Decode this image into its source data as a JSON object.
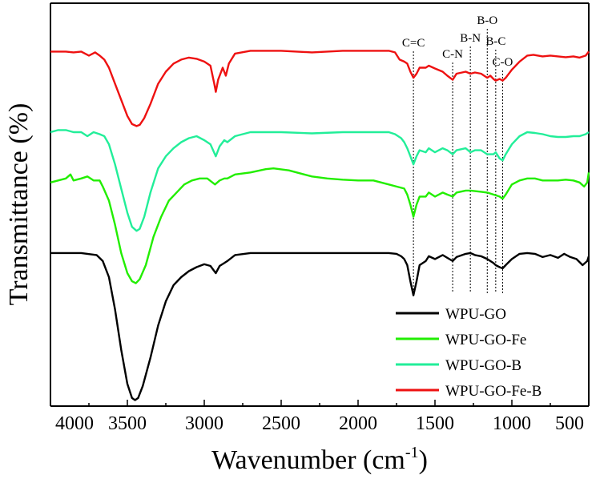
{
  "chart_data": {
    "type": "line",
    "title": "",
    "xlabel": "Wavenumber (cm",
    "xlabel_sup": "-1",
    "xlabel_close": ")",
    "ylabel": "Transmittance (%)",
    "xlim": [
      4000,
      500
    ],
    "ylim": [
      0,
      1
    ],
    "x_ticks": [
      "4000",
      "3500",
      "3000",
      "2500",
      "2000",
      "1500",
      "1000",
      "500"
    ],
    "legend": "bottom-right",
    "annotations": [
      {
        "label": "C=C",
        "x": 1640
      },
      {
        "label": "C-N",
        "x": 1385
      },
      {
        "label": "B-N",
        "x": 1270
      },
      {
        "label": "B-O",
        "x": 1160
      },
      {
        "label": "B-C",
        "x": 1105
      },
      {
        "label": "C-O",
        "x": 1060
      }
    ],
    "series": [
      {
        "name": "WPU-GO",
        "color": "#000000",
        "points": [
          [
            4000,
            0.38
          ],
          [
            3900,
            0.38
          ],
          [
            3800,
            0.38
          ],
          [
            3700,
            0.375
          ],
          [
            3660,
            0.36
          ],
          [
            3620,
            0.32
          ],
          [
            3580,
            0.24
          ],
          [
            3540,
            0.14
          ],
          [
            3500,
            0.055
          ],
          [
            3470,
            0.02
          ],
          [
            3450,
            0.015
          ],
          [
            3430,
            0.02
          ],
          [
            3400,
            0.05
          ],
          [
            3350,
            0.12
          ],
          [
            3300,
            0.2
          ],
          [
            3250,
            0.26
          ],
          [
            3200,
            0.3
          ],
          [
            3150,
            0.32
          ],
          [
            3100,
            0.335
          ],
          [
            3050,
            0.345
          ],
          [
            3000,
            0.352
          ],
          [
            2960,
            0.348
          ],
          [
            2925,
            0.33
          ],
          [
            2900,
            0.348
          ],
          [
            2870,
            0.355
          ],
          [
            2850,
            0.36
          ],
          [
            2800,
            0.375
          ],
          [
            2700,
            0.38
          ],
          [
            2500,
            0.38
          ],
          [
            2300,
            0.38
          ],
          [
            2000,
            0.38
          ],
          [
            1800,
            0.38
          ],
          [
            1750,
            0.378
          ],
          [
            1720,
            0.372
          ],
          [
            1700,
            0.365
          ],
          [
            1680,
            0.35
          ],
          [
            1660,
            0.31
          ],
          [
            1640,
            0.275
          ],
          [
            1620,
            0.31
          ],
          [
            1600,
            0.35
          ],
          [
            1560,
            0.36
          ],
          [
            1540,
            0.372
          ],
          [
            1500,
            0.365
          ],
          [
            1450,
            0.375
          ],
          [
            1420,
            0.368
          ],
          [
            1385,
            0.36
          ],
          [
            1360,
            0.37
          ],
          [
            1300,
            0.378
          ],
          [
            1270,
            0.38
          ],
          [
            1240,
            0.375
          ],
          [
            1200,
            0.372
          ],
          [
            1160,
            0.365
          ],
          [
            1120,
            0.355
          ],
          [
            1105,
            0.35
          ],
          [
            1080,
            0.345
          ],
          [
            1060,
            0.342
          ],
          [
            1040,
            0.35
          ],
          [
            1000,
            0.365
          ],
          [
            950,
            0.378
          ],
          [
            900,
            0.38
          ],
          [
            850,
            0.378
          ],
          [
            800,
            0.37
          ],
          [
            750,
            0.375
          ],
          [
            700,
            0.368
          ],
          [
            660,
            0.378
          ],
          [
            620,
            0.37
          ],
          [
            580,
            0.365
          ],
          [
            540,
            0.35
          ],
          [
            510,
            0.36
          ],
          [
            500,
            0.372
          ]
        ]
      },
      {
        "name": "WPU-GO-Fe",
        "color": "#22ee00",
        "points": [
          [
            4000,
            0.555
          ],
          [
            3950,
            0.56
          ],
          [
            3900,
            0.565
          ],
          [
            3870,
            0.575
          ],
          [
            3850,
            0.56
          ],
          [
            3800,
            0.565
          ],
          [
            3760,
            0.57
          ],
          [
            3720,
            0.56
          ],
          [
            3680,
            0.56
          ],
          [
            3660,
            0.545
          ],
          [
            3620,
            0.51
          ],
          [
            3580,
            0.45
          ],
          [
            3540,
            0.38
          ],
          [
            3500,
            0.33
          ],
          [
            3470,
            0.31
          ],
          [
            3445,
            0.305
          ],
          [
            3420,
            0.315
          ],
          [
            3380,
            0.35
          ],
          [
            3330,
            0.42
          ],
          [
            3280,
            0.47
          ],
          [
            3230,
            0.51
          ],
          [
            3180,
            0.53
          ],
          [
            3130,
            0.55
          ],
          [
            3080,
            0.56
          ],
          [
            3030,
            0.565
          ],
          [
            2980,
            0.565
          ],
          [
            2930,
            0.55
          ],
          [
            2900,
            0.56
          ],
          [
            2870,
            0.565
          ],
          [
            2850,
            0.565
          ],
          [
            2800,
            0.575
          ],
          [
            2700,
            0.58
          ],
          [
            2600,
            0.588
          ],
          [
            2550,
            0.59
          ],
          [
            2450,
            0.585
          ],
          [
            2350,
            0.575
          ],
          [
            2300,
            0.57
          ],
          [
            2200,
            0.565
          ],
          [
            2100,
            0.562
          ],
          [
            2000,
            0.56
          ],
          [
            1900,
            0.56
          ],
          [
            1800,
            0.55
          ],
          [
            1750,
            0.545
          ],
          [
            1700,
            0.54
          ],
          [
            1680,
            0.525
          ],
          [
            1660,
            0.5
          ],
          [
            1640,
            0.47
          ],
          [
            1620,
            0.5
          ],
          [
            1600,
            0.52
          ],
          [
            1560,
            0.52
          ],
          [
            1540,
            0.53
          ],
          [
            1500,
            0.52
          ],
          [
            1450,
            0.53
          ],
          [
            1420,
            0.525
          ],
          [
            1385,
            0.52
          ],
          [
            1360,
            0.53
          ],
          [
            1300,
            0.535
          ],
          [
            1270,
            0.535
          ],
          [
            1200,
            0.532
          ],
          [
            1160,
            0.53
          ],
          [
            1120,
            0.525
          ],
          [
            1080,
            0.52
          ],
          [
            1060,
            0.515
          ],
          [
            1040,
            0.525
          ],
          [
            1000,
            0.55
          ],
          [
            950,
            0.56
          ],
          [
            900,
            0.565
          ],
          [
            850,
            0.565
          ],
          [
            800,
            0.56
          ],
          [
            750,
            0.56
          ],
          [
            700,
            0.56
          ],
          [
            650,
            0.562
          ],
          [
            600,
            0.56
          ],
          [
            560,
            0.555
          ],
          [
            530,
            0.545
          ],
          [
            510,
            0.555
          ],
          [
            500,
            0.58
          ]
        ]
      },
      {
        "name": "WPU-GO-B",
        "color": "#22ee99",
        "points": [
          [
            4000,
            0.68
          ],
          [
            3950,
            0.685
          ],
          [
            3900,
            0.685
          ],
          [
            3850,
            0.68
          ],
          [
            3800,
            0.68
          ],
          [
            3760,
            0.67
          ],
          [
            3720,
            0.68
          ],
          [
            3680,
            0.675
          ],
          [
            3650,
            0.67
          ],
          [
            3620,
            0.65
          ],
          [
            3580,
            0.6
          ],
          [
            3540,
            0.54
          ],
          [
            3500,
            0.48
          ],
          [
            3470,
            0.445
          ],
          [
            3440,
            0.435
          ],
          [
            3420,
            0.44
          ],
          [
            3390,
            0.47
          ],
          [
            3350,
            0.53
          ],
          [
            3300,
            0.59
          ],
          [
            3250,
            0.62
          ],
          [
            3200,
            0.64
          ],
          [
            3150,
            0.655
          ],
          [
            3100,
            0.665
          ],
          [
            3050,
            0.67
          ],
          [
            3000,
            0.66
          ],
          [
            2960,
            0.65
          ],
          [
            2925,
            0.62
          ],
          [
            2900,
            0.645
          ],
          [
            2870,
            0.66
          ],
          [
            2850,
            0.655
          ],
          [
            2800,
            0.67
          ],
          [
            2700,
            0.68
          ],
          [
            2500,
            0.68
          ],
          [
            2300,
            0.677
          ],
          [
            2100,
            0.68
          ],
          [
            2000,
            0.68
          ],
          [
            1800,
            0.68
          ],
          [
            1760,
            0.675
          ],
          [
            1720,
            0.665
          ],
          [
            1700,
            0.655
          ],
          [
            1680,
            0.64
          ],
          [
            1660,
            0.62
          ],
          [
            1640,
            0.6
          ],
          [
            1620,
            0.62
          ],
          [
            1600,
            0.635
          ],
          [
            1560,
            0.63
          ],
          [
            1540,
            0.64
          ],
          [
            1500,
            0.63
          ],
          [
            1450,
            0.64
          ],
          [
            1420,
            0.635
          ],
          [
            1385,
            0.625
          ],
          [
            1360,
            0.635
          ],
          [
            1300,
            0.64
          ],
          [
            1270,
            0.63
          ],
          [
            1240,
            0.635
          ],
          [
            1200,
            0.635
          ],
          [
            1160,
            0.625
          ],
          [
            1120,
            0.625
          ],
          [
            1105,
            0.63
          ],
          [
            1080,
            0.615
          ],
          [
            1060,
            0.61
          ],
          [
            1040,
            0.625
          ],
          [
            1000,
            0.65
          ],
          [
            950,
            0.67
          ],
          [
            900,
            0.68
          ],
          [
            850,
            0.678
          ],
          [
            800,
            0.675
          ],
          [
            750,
            0.67
          ],
          [
            700,
            0.668
          ],
          [
            650,
            0.668
          ],
          [
            600,
            0.67
          ],
          [
            560,
            0.67
          ],
          [
            520,
            0.675
          ],
          [
            500,
            0.68
          ]
        ]
      },
      {
        "name": "WPU-GO-Fe-B",
        "color": "#ee1111",
        "points": [
          [
            4000,
            0.88
          ],
          [
            3950,
            0.88
          ],
          [
            3900,
            0.88
          ],
          [
            3850,
            0.878
          ],
          [
            3800,
            0.88
          ],
          [
            3750,
            0.87
          ],
          [
            3710,
            0.878
          ],
          [
            3680,
            0.87
          ],
          [
            3650,
            0.86
          ],
          [
            3620,
            0.84
          ],
          [
            3580,
            0.8
          ],
          [
            3540,
            0.76
          ],
          [
            3500,
            0.72
          ],
          [
            3470,
            0.7
          ],
          [
            3440,
            0.695
          ],
          [
            3420,
            0.698
          ],
          [
            3390,
            0.715
          ],
          [
            3350,
            0.75
          ],
          [
            3300,
            0.8
          ],
          [
            3250,
            0.83
          ],
          [
            3200,
            0.85
          ],
          [
            3150,
            0.86
          ],
          [
            3100,
            0.865
          ],
          [
            3050,
            0.862
          ],
          [
            3000,
            0.855
          ],
          [
            2960,
            0.845
          ],
          [
            2935,
            0.8
          ],
          [
            2925,
            0.78
          ],
          [
            2910,
            0.81
          ],
          [
            2880,
            0.84
          ],
          [
            2860,
            0.82
          ],
          [
            2840,
            0.85
          ],
          [
            2800,
            0.875
          ],
          [
            2700,
            0.882
          ],
          [
            2500,
            0.882
          ],
          [
            2300,
            0.878
          ],
          [
            2100,
            0.882
          ],
          [
            2000,
            0.882
          ],
          [
            1800,
            0.882
          ],
          [
            1760,
            0.878
          ],
          [
            1730,
            0.86
          ],
          [
            1700,
            0.855
          ],
          [
            1680,
            0.85
          ],
          [
            1660,
            0.83
          ],
          [
            1640,
            0.815
          ],
          [
            1620,
            0.825
          ],
          [
            1600,
            0.84
          ],
          [
            1560,
            0.84
          ],
          [
            1540,
            0.845
          ],
          [
            1500,
            0.838
          ],
          [
            1450,
            0.83
          ],
          [
            1420,
            0.82
          ],
          [
            1385,
            0.81
          ],
          [
            1360,
            0.825
          ],
          [
            1300,
            0.83
          ],
          [
            1270,
            0.825
          ],
          [
            1240,
            0.828
          ],
          [
            1200,
            0.825
          ],
          [
            1160,
            0.815
          ],
          [
            1140,
            0.82
          ],
          [
            1120,
            0.812
          ],
          [
            1105,
            0.808
          ],
          [
            1080,
            0.812
          ],
          [
            1060,
            0.808
          ],
          [
            1040,
            0.815
          ],
          [
            1000,
            0.835
          ],
          [
            950,
            0.855
          ],
          [
            900,
            0.87
          ],
          [
            860,
            0.872
          ],
          [
            830,
            0.87
          ],
          [
            800,
            0.868
          ],
          [
            750,
            0.87
          ],
          [
            700,
            0.868
          ],
          [
            650,
            0.866
          ],
          [
            600,
            0.868
          ],
          [
            560,
            0.865
          ],
          [
            520,
            0.87
          ],
          [
            500,
            0.88
          ]
        ]
      }
    ]
  }
}
